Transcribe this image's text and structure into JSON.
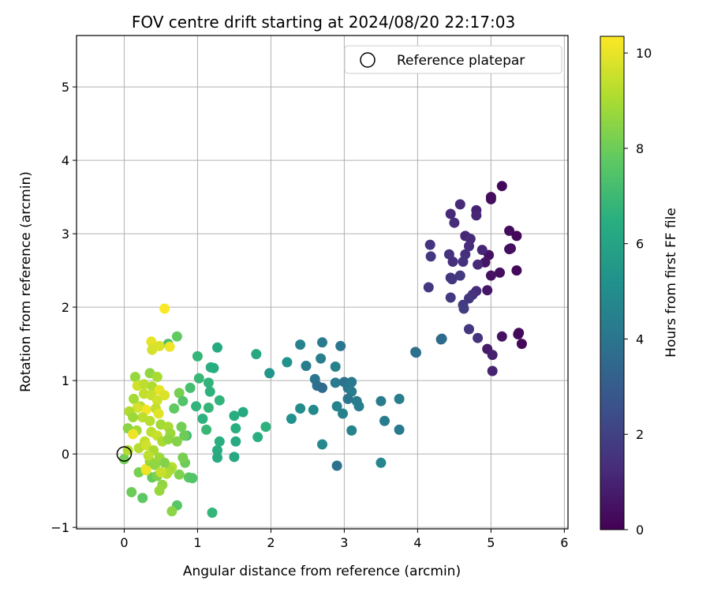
{
  "chart_data": {
    "type": "scatter",
    "title": "FOV centre drift starting at 2024/08/20 22:17:03",
    "xlabel": "Angular distance from reference (arcmin)",
    "ylabel": "Rotation from reference (arcmin)",
    "xlim": [
      -0.65,
      6.05
    ],
    "ylim": [
      -1.02,
      5.7
    ],
    "xticks": [
      0,
      1,
      2,
      3,
      4,
      5,
      6
    ],
    "yticks": [
      -1,
      0,
      1,
      2,
      3,
      4,
      5
    ],
    "grid": true,
    "legend": {
      "position": "top-right",
      "entries": [
        "Reference platepar"
      ]
    },
    "reference": {
      "x": 0,
      "y": 0
    },
    "colorbar": {
      "label": "Hours from first FF file",
      "range": [
        0,
        10.35
      ],
      "ticks": [
        0,
        2,
        4,
        6,
        8,
        10
      ],
      "colormap": "viridis"
    },
    "points": [
      {
        "x": 5.15,
        "y": 3.65,
        "c": 0.2
      },
      {
        "x": 5.0,
        "y": 3.5,
        "c": 0.3
      },
      {
        "x": 5.0,
        "y": 3.47,
        "c": 0.4
      },
      {
        "x": 5.25,
        "y": 3.04,
        "c": 0.3
      },
      {
        "x": 5.35,
        "y": 2.97,
        "c": 0.2
      },
      {
        "x": 5.27,
        "y": 2.8,
        "c": 0.3
      },
      {
        "x": 5.25,
        "y": 2.79,
        "c": 0.4
      },
      {
        "x": 4.97,
        "y": 2.71,
        "c": 0.5
      },
      {
        "x": 4.92,
        "y": 2.61,
        "c": 0.6
      },
      {
        "x": 5.35,
        "y": 2.5,
        "c": 0.2
      },
      {
        "x": 5.12,
        "y": 2.47,
        "c": 0.4
      },
      {
        "x": 5.0,
        "y": 2.43,
        "c": 0.5
      },
      {
        "x": 4.95,
        "y": 2.23,
        "c": 0.6
      },
      {
        "x": 5.38,
        "y": 1.65,
        "c": 0.3
      },
      {
        "x": 5.37,
        "y": 1.63,
        "c": 0.2
      },
      {
        "x": 5.15,
        "y": 1.6,
        "c": 0.5
      },
      {
        "x": 5.42,
        "y": 1.5,
        "c": 0.2
      },
      {
        "x": 4.95,
        "y": 1.43,
        "c": 0.7
      },
      {
        "x": 5.02,
        "y": 1.35,
        "c": 0.9
      },
      {
        "x": 5.02,
        "y": 1.13,
        "c": 1.0
      },
      {
        "x": 4.8,
        "y": 3.32,
        "c": 1.0
      },
      {
        "x": 4.8,
        "y": 3.25,
        "c": 1.1
      },
      {
        "x": 4.58,
        "y": 3.4,
        "c": 1.2
      },
      {
        "x": 4.45,
        "y": 3.27,
        "c": 1.2
      },
      {
        "x": 4.5,
        "y": 3.15,
        "c": 1.3
      },
      {
        "x": 4.65,
        "y": 2.97,
        "c": 1.1
      },
      {
        "x": 4.72,
        "y": 2.93,
        "c": 1.2
      },
      {
        "x": 4.88,
        "y": 2.78,
        "c": 1.1
      },
      {
        "x": 4.7,
        "y": 2.83,
        "c": 1.3
      },
      {
        "x": 4.65,
        "y": 2.72,
        "c": 1.4
      },
      {
        "x": 4.43,
        "y": 2.72,
        "c": 1.5
      },
      {
        "x": 4.48,
        "y": 2.62,
        "c": 1.4
      },
      {
        "x": 4.62,
        "y": 2.62,
        "c": 1.5
      },
      {
        "x": 4.82,
        "y": 2.58,
        "c": 1.2
      },
      {
        "x": 4.45,
        "y": 2.4,
        "c": 1.5
      },
      {
        "x": 4.47,
        "y": 2.38,
        "c": 1.6
      },
      {
        "x": 4.58,
        "y": 2.43,
        "c": 1.7
      },
      {
        "x": 4.8,
        "y": 2.22,
        "c": 1.3
      },
      {
        "x": 4.75,
        "y": 2.17,
        "c": 1.5
      },
      {
        "x": 4.7,
        "y": 2.12,
        "c": 1.6
      },
      {
        "x": 4.45,
        "y": 2.13,
        "c": 1.7
      },
      {
        "x": 4.62,
        "y": 2.03,
        "c": 1.8
      },
      {
        "x": 4.63,
        "y": 1.98,
        "c": 1.9
      },
      {
        "x": 4.17,
        "y": 2.85,
        "c": 1.5
      },
      {
        "x": 4.18,
        "y": 2.69,
        "c": 1.6
      },
      {
        "x": 4.15,
        "y": 2.27,
        "c": 1.7
      },
      {
        "x": 4.7,
        "y": 1.7,
        "c": 1.6
      },
      {
        "x": 4.82,
        "y": 1.58,
        "c": 1.5
      },
      {
        "x": 4.32,
        "y": 1.56,
        "c": 3.5
      },
      {
        "x": 4.33,
        "y": 1.57,
        "c": 3.6
      },
      {
        "x": 3.98,
        "y": 1.38,
        "c": 3.7
      },
      {
        "x": 3.97,
        "y": 1.39,
        "c": 3.8
      },
      {
        "x": 2.7,
        "y": 1.52,
        "c": 4.2
      },
      {
        "x": 2.4,
        "y": 1.49,
        "c": 4.6
      },
      {
        "x": 2.95,
        "y": 1.47,
        "c": 4.1
      },
      {
        "x": 2.68,
        "y": 1.3,
        "c": 4.4
      },
      {
        "x": 2.48,
        "y": 1.2,
        "c": 4.3
      },
      {
        "x": 2.88,
        "y": 1.19,
        "c": 4.5
      },
      {
        "x": 2.6,
        "y": 1.02,
        "c": 4.0
      },
      {
        "x": 2.88,
        "y": 0.97,
        "c": 4.3
      },
      {
        "x": 3.0,
        "y": 0.98,
        "c": 3.9
      },
      {
        "x": 3.05,
        "y": 0.9,
        "c": 4.1
      },
      {
        "x": 2.63,
        "y": 0.93,
        "c": 3.8
      },
      {
        "x": 2.7,
        "y": 0.9,
        "c": 3.6
      },
      {
        "x": 3.1,
        "y": 0.98,
        "c": 4.2
      },
      {
        "x": 3.1,
        "y": 0.85,
        "c": 4.3
      },
      {
        "x": 3.05,
        "y": 0.75,
        "c": 4.0
      },
      {
        "x": 3.17,
        "y": 0.72,
        "c": 4.3
      },
      {
        "x": 3.2,
        "y": 0.65,
        "c": 4.4
      },
      {
        "x": 2.9,
        "y": 0.65,
        "c": 4.6
      },
      {
        "x": 2.98,
        "y": 0.55,
        "c": 4.5
      },
      {
        "x": 3.1,
        "y": 0.32,
        "c": 4.6
      },
      {
        "x": 3.5,
        "y": 0.72,
        "c": 4.3
      },
      {
        "x": 3.75,
        "y": 0.75,
        "c": 4.4
      },
      {
        "x": 3.55,
        "y": 0.45,
        "c": 4.3
      },
      {
        "x": 3.75,
        "y": 0.33,
        "c": 4.2
      },
      {
        "x": 2.4,
        "y": 0.62,
        "c": 5.0
      },
      {
        "x": 2.58,
        "y": 0.6,
        "c": 4.9
      },
      {
        "x": 2.7,
        "y": 0.13,
        "c": 4.8
      },
      {
        "x": 2.9,
        "y": -0.16,
        "c": 3.9
      },
      {
        "x": 3.5,
        "y": -0.12,
        "c": 4.7
      },
      {
        "x": 2.28,
        "y": 0.48,
        "c": 5.2
      },
      {
        "x": 2.22,
        "y": 1.25,
        "c": 5.2
      },
      {
        "x": 1.98,
        "y": 1.1,
        "c": 5.4
      },
      {
        "x": 1.8,
        "y": 1.36,
        "c": 6.2
      },
      {
        "x": 1.27,
        "y": 1.45,
        "c": 6.3
      },
      {
        "x": 1.62,
        "y": 0.57,
        "c": 6.3
      },
      {
        "x": 1.5,
        "y": 0.52,
        "c": 6.4
      },
      {
        "x": 1.52,
        "y": 0.35,
        "c": 6.5
      },
      {
        "x": 1.52,
        "y": 0.17,
        "c": 6.3
      },
      {
        "x": 1.5,
        "y": -0.04,
        "c": 6.2
      },
      {
        "x": 1.3,
        "y": 0.17,
        "c": 6.5
      },
      {
        "x": 1.27,
        "y": 0.05,
        "c": 6.4
      },
      {
        "x": 1.27,
        "y": -0.05,
        "c": 6.3
      },
      {
        "x": 1.82,
        "y": 0.23,
        "c": 6.5
      },
      {
        "x": 1.93,
        "y": 0.37,
        "c": 6.6
      },
      {
        "x": 1.18,
        "y": 1.18,
        "c": 6.5
      },
      {
        "x": 1.22,
        "y": 1.17,
        "c": 6.4
      },
      {
        "x": 1.0,
        "y": 1.33,
        "c": 6.8
      },
      {
        "x": 1.15,
        "y": 0.97,
        "c": 6.7
      },
      {
        "x": 1.02,
        "y": 1.03,
        "c": 6.9
      },
      {
        "x": 1.17,
        "y": 0.85,
        "c": 6.6
      },
      {
        "x": 1.3,
        "y": 0.73,
        "c": 6.7
      },
      {
        "x": 1.15,
        "y": 0.63,
        "c": 6.8
      },
      {
        "x": 0.98,
        "y": 0.65,
        "c": 6.7
      },
      {
        "x": 1.07,
        "y": 0.48,
        "c": 6.6
      },
      {
        "x": 1.12,
        "y": 0.33,
        "c": 6.9
      },
      {
        "x": 0.85,
        "y": 0.25,
        "c": 7.0
      },
      {
        "x": 0.9,
        "y": 0.9,
        "c": 7.2
      },
      {
        "x": 1.2,
        "y": -0.8,
        "c": 6.8
      },
      {
        "x": 0.72,
        "y": 1.6,
        "c": 7.8
      },
      {
        "x": 0.6,
        "y": 1.5,
        "c": 7.3
      },
      {
        "x": 0.75,
        "y": 0.83,
        "c": 8.2
      },
      {
        "x": 0.8,
        "y": 0.72,
        "c": 7.5
      },
      {
        "x": 0.68,
        "y": 0.62,
        "c": 7.8
      },
      {
        "x": 0.78,
        "y": 0.37,
        "c": 8.1
      },
      {
        "x": 0.82,
        "y": 0.25,
        "c": 8.0
      },
      {
        "x": 0.88,
        "y": -0.32,
        "c": 7.7
      },
      {
        "x": 0.93,
        "y": -0.33,
        "c": 7.5
      },
      {
        "x": 0.72,
        "y": -0.7,
        "c": 7.6
      },
      {
        "x": 0.83,
        "y": -0.12,
        "c": 8.0
      },
      {
        "x": 0.8,
        "y": -0.05,
        "c": 8.2
      },
      {
        "x": 0.65,
        "y": -0.78,
        "c": 8.5
      },
      {
        "x": 0.25,
        "y": -0.6,
        "c": 7.7
      },
      {
        "x": 0.1,
        "y": -0.52,
        "c": 8.0
      },
      {
        "x": 0.2,
        "y": -0.25,
        "c": 8.2
      },
      {
        "x": 0.0,
        "y": -0.07,
        "c": 8.1
      },
      {
        "x": 0.38,
        "y": -0.32,
        "c": 7.9
      },
      {
        "x": 0.45,
        "y": -0.3,
        "c": 8.3
      },
      {
        "x": 0.52,
        "y": -0.42,
        "c": 8.6
      },
      {
        "x": 0.48,
        "y": -0.5,
        "c": 8.7
      },
      {
        "x": 0.3,
        "y": -0.22,
        "c": 9.9
      },
      {
        "x": 0.3,
        "y": -0.2,
        "c": 10.1
      },
      {
        "x": 0.55,
        "y": 1.98,
        "c": 10.3
      },
      {
        "x": 0.37,
        "y": 1.53,
        "c": 10.0
      },
      {
        "x": 0.4,
        "y": 1.46,
        "c": 9.9
      },
      {
        "x": 0.38,
        "y": 1.42,
        "c": 9.7
      },
      {
        "x": 0.48,
        "y": 1.47,
        "c": 9.8
      },
      {
        "x": 0.62,
        "y": 1.46,
        "c": 10.1
      },
      {
        "x": 0.35,
        "y": 1.1,
        "c": 8.6
      },
      {
        "x": 0.45,
        "y": 1.05,
        "c": 9.0
      },
      {
        "x": 0.15,
        "y": 1.05,
        "c": 8.7
      },
      {
        "x": 0.18,
        "y": 0.93,
        "c": 9.6
      },
      {
        "x": 0.27,
        "y": 0.95,
        "c": 9.3
      },
      {
        "x": 0.38,
        "y": 0.92,
        "c": 9.1
      },
      {
        "x": 0.48,
        "y": 0.87,
        "c": 10.0
      },
      {
        "x": 0.55,
        "y": 0.8,
        "c": 9.8
      },
      {
        "x": 0.27,
        "y": 0.82,
        "c": 9.4
      },
      {
        "x": 0.37,
        "y": 0.8,
        "c": 9.5
      },
      {
        "x": 0.45,
        "y": 0.73,
        "c": 9.6
      },
      {
        "x": 0.13,
        "y": 0.75,
        "c": 8.9
      },
      {
        "x": 0.22,
        "y": 0.65,
        "c": 9.2
      },
      {
        "x": 0.3,
        "y": 0.6,
        "c": 10.2
      },
      {
        "x": 0.43,
        "y": 0.62,
        "c": 9.4
      },
      {
        "x": 0.47,
        "y": 0.55,
        "c": 9.9
      },
      {
        "x": 0.18,
        "y": 0.63,
        "c": 9.7
      },
      {
        "x": 0.07,
        "y": 0.58,
        "c": 9.1
      },
      {
        "x": 0.25,
        "y": 0.5,
        "c": 9.3
      },
      {
        "x": 0.12,
        "y": 0.5,
        "c": 8.8
      },
      {
        "x": 0.35,
        "y": 0.45,
        "c": 9.2
      },
      {
        "x": 0.5,
        "y": 0.4,
        "c": 8.9
      },
      {
        "x": 0.6,
        "y": 0.37,
        "c": 9.0
      },
      {
        "x": 0.05,
        "y": 0.35,
        "c": 8.5
      },
      {
        "x": 0.17,
        "y": 0.32,
        "c": 8.9
      },
      {
        "x": 0.37,
        "y": 0.3,
        "c": 9.3
      },
      {
        "x": 0.63,
        "y": 0.28,
        "c": 8.8
      },
      {
        "x": 0.45,
        "y": 0.25,
        "c": 9.5
      },
      {
        "x": 0.12,
        "y": 0.27,
        "c": 10.1
      },
      {
        "x": 0.28,
        "y": 0.17,
        "c": 9.4
      },
      {
        "x": 0.52,
        "y": 0.17,
        "c": 9.0
      },
      {
        "x": 0.6,
        "y": 0.2,
        "c": 8.6
      },
      {
        "x": 0.72,
        "y": 0.17,
        "c": 8.4
      },
      {
        "x": 0.05,
        "y": 0.05,
        "c": 9.1
      },
      {
        "x": 0.2,
        "y": 0.08,
        "c": 9.2
      },
      {
        "x": 0.3,
        "y": 0.12,
        "c": 9.6
      },
      {
        "x": 0.4,
        "y": 0.05,
        "c": 9.0
      },
      {
        "x": 0.48,
        "y": -0.05,
        "c": 8.8
      },
      {
        "x": 0.65,
        "y": -0.18,
        "c": 9.2
      },
      {
        "x": 0.62,
        "y": -0.22,
        "c": 8.9
      },
      {
        "x": 0.55,
        "y": -0.12,
        "c": 8.4
      },
      {
        "x": 0.35,
        "y": -0.1,
        "c": 8.7
      },
      {
        "x": 0.33,
        "y": -0.02,
        "c": 9.3
      },
      {
        "x": 0.42,
        "y": -0.15,
        "c": 8.6
      },
      {
        "x": 0.75,
        "y": -0.28,
        "c": 8.3
      },
      {
        "x": 0.58,
        "y": -0.27,
        "c": 9.1
      },
      {
        "x": 0.5,
        "y": -0.25,
        "c": 9.5
      }
    ]
  }
}
